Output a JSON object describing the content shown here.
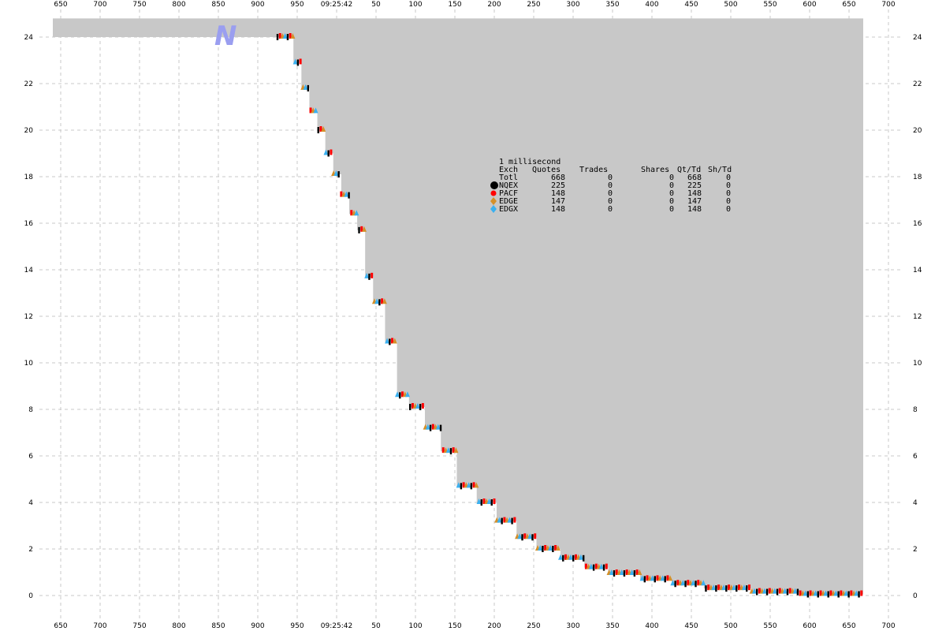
{
  "chart_data": {
    "type": "scatter",
    "x_tick_labels": [
      "650",
      "700",
      "750",
      "800",
      "850",
      "900",
      "950",
      "09:25:42",
      "50",
      "100",
      "150",
      "200",
      "250",
      "300",
      "350",
      "400",
      "450",
      "500",
      "550",
      "600",
      "650",
      "700"
    ],
    "y_ticks": [
      0,
      2,
      4,
      6,
      8,
      10,
      12,
      14,
      16,
      18,
      20,
      22,
      24
    ],
    "ylim": [
      -0.4,
      25
    ],
    "x_axis_span": [
      642,
      1142
    ],
    "grid": true,
    "watermark": "N",
    "legend": {
      "title": "1 millisecond",
      "columns": [
        "Exch",
        "Quotes",
        "Trades",
        "Shares",
        "Qt/Td",
        "Sh/Td"
      ],
      "rows": [
        {
          "exch": "Totl",
          "quotes": "668",
          "trades": "0",
          "shares": "0",
          "qt_td": "668",
          "sh_td": "0",
          "color": ""
        },
        {
          "exch": "NQEX",
          "quotes": "225",
          "trades": "0",
          "shares": "0",
          "qt_td": "225",
          "sh_td": "0",
          "color": "#000000"
        },
        {
          "exch": "PACF",
          "quotes": "148",
          "trades": "0",
          "shares": "0",
          "qt_td": "148",
          "sh_td": "0",
          "color": "#ff0000"
        },
        {
          "exch": "EDGE",
          "quotes": "147",
          "trades": "0",
          "shares": "0",
          "qt_td": "147",
          "sh_td": "0",
          "color": "#d4902a"
        },
        {
          "exch": "EDGX",
          "quotes": "148",
          "trades": "0",
          "shares": "0",
          "qt_td": "148",
          "sh_td": "0",
          "color": "#3ab0f0"
        }
      ]
    },
    "spread_fill_color": "#c8c8c8",
    "ask_level": 24.8,
    "curve": {
      "x": [
        925,
        937,
        945,
        955,
        965,
        975,
        985,
        995,
        1005,
        1015,
        1025,
        1035,
        1045,
        1060,
        1075,
        1090,
        1110,
        1130,
        1150,
        1175,
        1200,
        1225,
        1250,
        1280,
        1310,
        1340,
        1380,
        1420,
        1460,
        1520,
        1580,
        1660
      ],
      "y": [
        24.0,
        24.0,
        22.9,
        21.8,
        20.8,
        20.0,
        19.0,
        18.1,
        17.2,
        16.4,
        15.7,
        13.7,
        12.6,
        10.9,
        8.6,
        8.1,
        7.2,
        6.2,
        4.7,
        4.0,
        3.2,
        2.5,
        2.0,
        1.6,
        1.2,
        0.95,
        0.7,
        0.5,
        0.3,
        0.15,
        0.05,
        -0.1
      ]
    }
  }
}
